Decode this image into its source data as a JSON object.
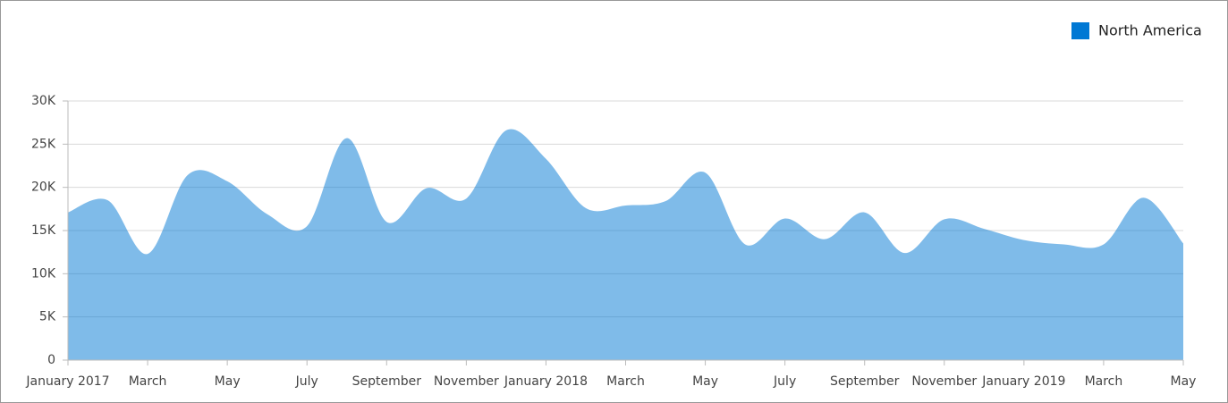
{
  "chart_data": {
    "type": "area",
    "legend": "top-right",
    "categories": [
      "January 2017",
      null,
      "March",
      null,
      "May",
      null,
      "July",
      null,
      "September",
      null,
      "November",
      null,
      "January 2018",
      null,
      "March",
      null,
      "May",
      null,
      "July",
      null,
      "September",
      null,
      "November",
      null,
      "January 2019",
      null,
      "March",
      null,
      "May"
    ],
    "series": [
      {
        "name": "North America",
        "color": "#0078d4",
        "values": [
          17100,
          18500,
          12300,
          21400,
          20700,
          16900,
          15500,
          25700,
          16000,
          19900,
          18700,
          26600,
          23300,
          17600,
          17900,
          18400,
          21700,
          13400,
          16400,
          14000,
          17100,
          12400,
          16300,
          15200,
          13900,
          13400,
          13400,
          18800,
          13500
        ]
      }
    ],
    "ylim": [
      0,
      30000
    ],
    "yticks": [
      0,
      {
        "value": 5000,
        "label": "5K"
      },
      {
        "value": 10000,
        "label": "10K"
      },
      {
        "value": 15000,
        "label": "15K"
      },
      {
        "value": 20000,
        "label": "20K"
      },
      {
        "value": 25000,
        "label": "25K"
      },
      {
        "value": 30000,
        "label": "30K"
      }
    ],
    "grid": true
  }
}
